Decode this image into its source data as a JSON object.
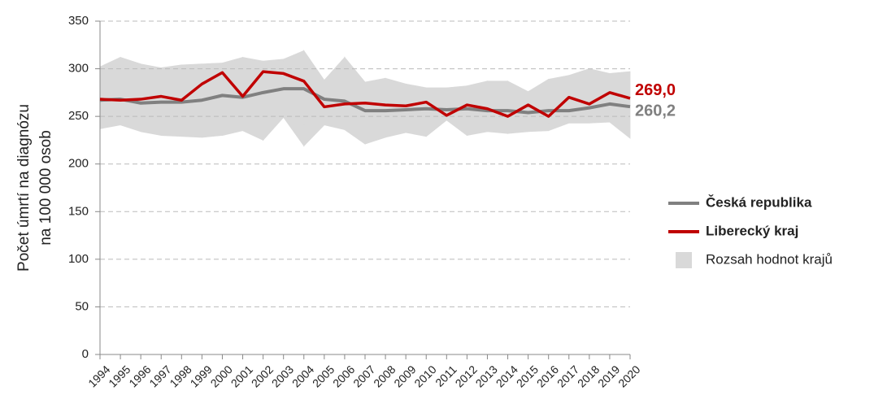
{
  "chart_data": {
    "type": "line",
    "ylabel": [
      "Počet úmrtí na diagnózu",
      "na 100 000 osob"
    ],
    "categories": [
      "1994",
      "1995",
      "1996",
      "1997",
      "1998",
      "1999",
      "2000",
      "2001",
      "2002",
      "2003",
      "2004",
      "2005",
      "2006",
      "2007",
      "2008",
      "2009",
      "2010",
      "2011",
      "2012",
      "2013",
      "2014",
      "2015",
      "2016",
      "2017",
      "2018",
      "2019",
      "2020"
    ],
    "range": {
      "name": "Rozsah hodnot krajů",
      "color": "#d9d9d9",
      "high": [
        302,
        312,
        305,
        301,
        304,
        305,
        306,
        312,
        308,
        310,
        319,
        288,
        312,
        286,
        290,
        284,
        280,
        280,
        282,
        287,
        287,
        276,
        289,
        293,
        300,
        295,
        297
      ],
      "low": [
        237,
        241,
        234,
        230,
        229,
        228,
        230,
        235,
        225,
        249,
        219,
        241,
        236,
        221,
        228,
        233,
        229,
        246,
        230,
        234,
        232,
        234,
        235,
        243,
        243,
        244,
        227
      ]
    },
    "series": [
      {
        "name": "Česká republika",
        "color": "#808080",
        "values": [
          267,
          268,
          264,
          265,
          265,
          267,
          272,
          270,
          275,
          279,
          279,
          268,
          266,
          256,
          256,
          257,
          258,
          257,
          258,
          256,
          256,
          254,
          256,
          256,
          259,
          263,
          260.2
        ],
        "value_labels": [
          null,
          null,
          null,
          null,
          null,
          null,
          null,
          null,
          null,
          null,
          null,
          null,
          null,
          null,
          null,
          null,
          null,
          null,
          null,
          null,
          null,
          null,
          null,
          null,
          null,
          null,
          "260,2"
        ]
      },
      {
        "name": "Liberecký kraj",
        "color": "#c00000",
        "values": [
          268,
          267,
          268,
          271,
          267,
          284,
          296,
          271,
          297,
          295,
          287,
          260,
          263,
          264,
          262,
          261,
          265,
          251,
          262,
          258,
          250,
          262,
          250,
          270,
          263,
          275,
          269.0
        ],
        "value_labels": [
          null,
          null,
          null,
          null,
          null,
          null,
          null,
          null,
          null,
          null,
          null,
          null,
          null,
          null,
          null,
          null,
          null,
          null,
          null,
          null,
          null,
          null,
          null,
          null,
          null,
          null,
          "269,0"
        ]
      }
    ],
    "ylim": [
      0,
      350
    ],
    "yticks": [
      0,
      50,
      100,
      150,
      200,
      250,
      300,
      350
    ],
    "grid": true
  }
}
